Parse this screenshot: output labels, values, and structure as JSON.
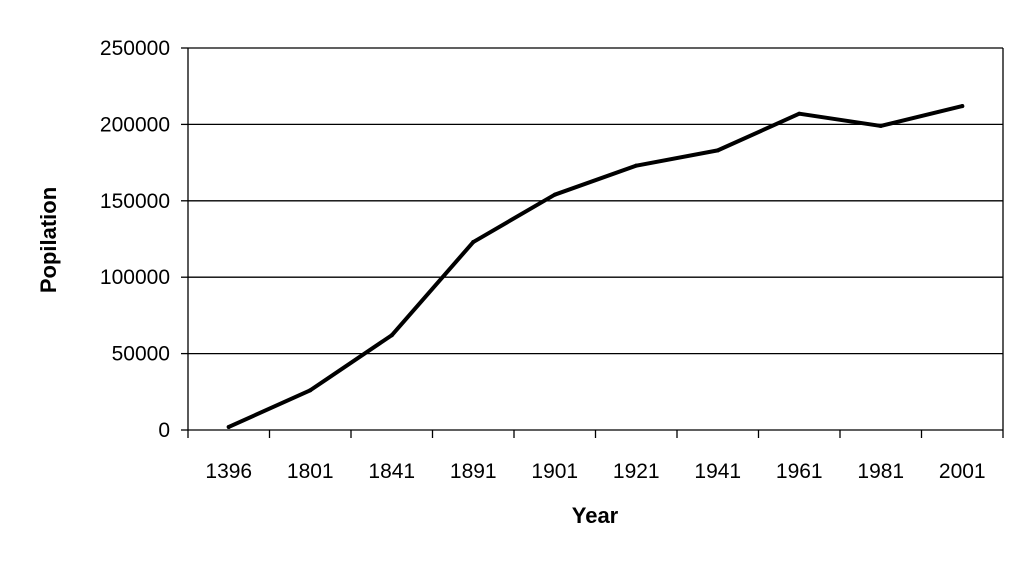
{
  "chart_data": {
    "type": "line",
    "title": "",
    "xlabel": "Year",
    "ylabel": "Popilation",
    "categories": [
      "1396",
      "1801",
      "1841",
      "1891",
      "1901",
      "1921",
      "1941",
      "1961",
      "1981",
      "2001"
    ],
    "series": [
      {
        "values": [
          2000,
          26000,
          62000,
          123000,
          154000,
          173000,
          183000,
          207000,
          199000,
          212000
        ]
      }
    ],
    "ylim": [
      0,
      250000
    ],
    "yticks": [
      0,
      50000,
      100000,
      150000,
      200000,
      250000
    ],
    "grid": true,
    "legend": "none",
    "line_color": "#000000"
  }
}
